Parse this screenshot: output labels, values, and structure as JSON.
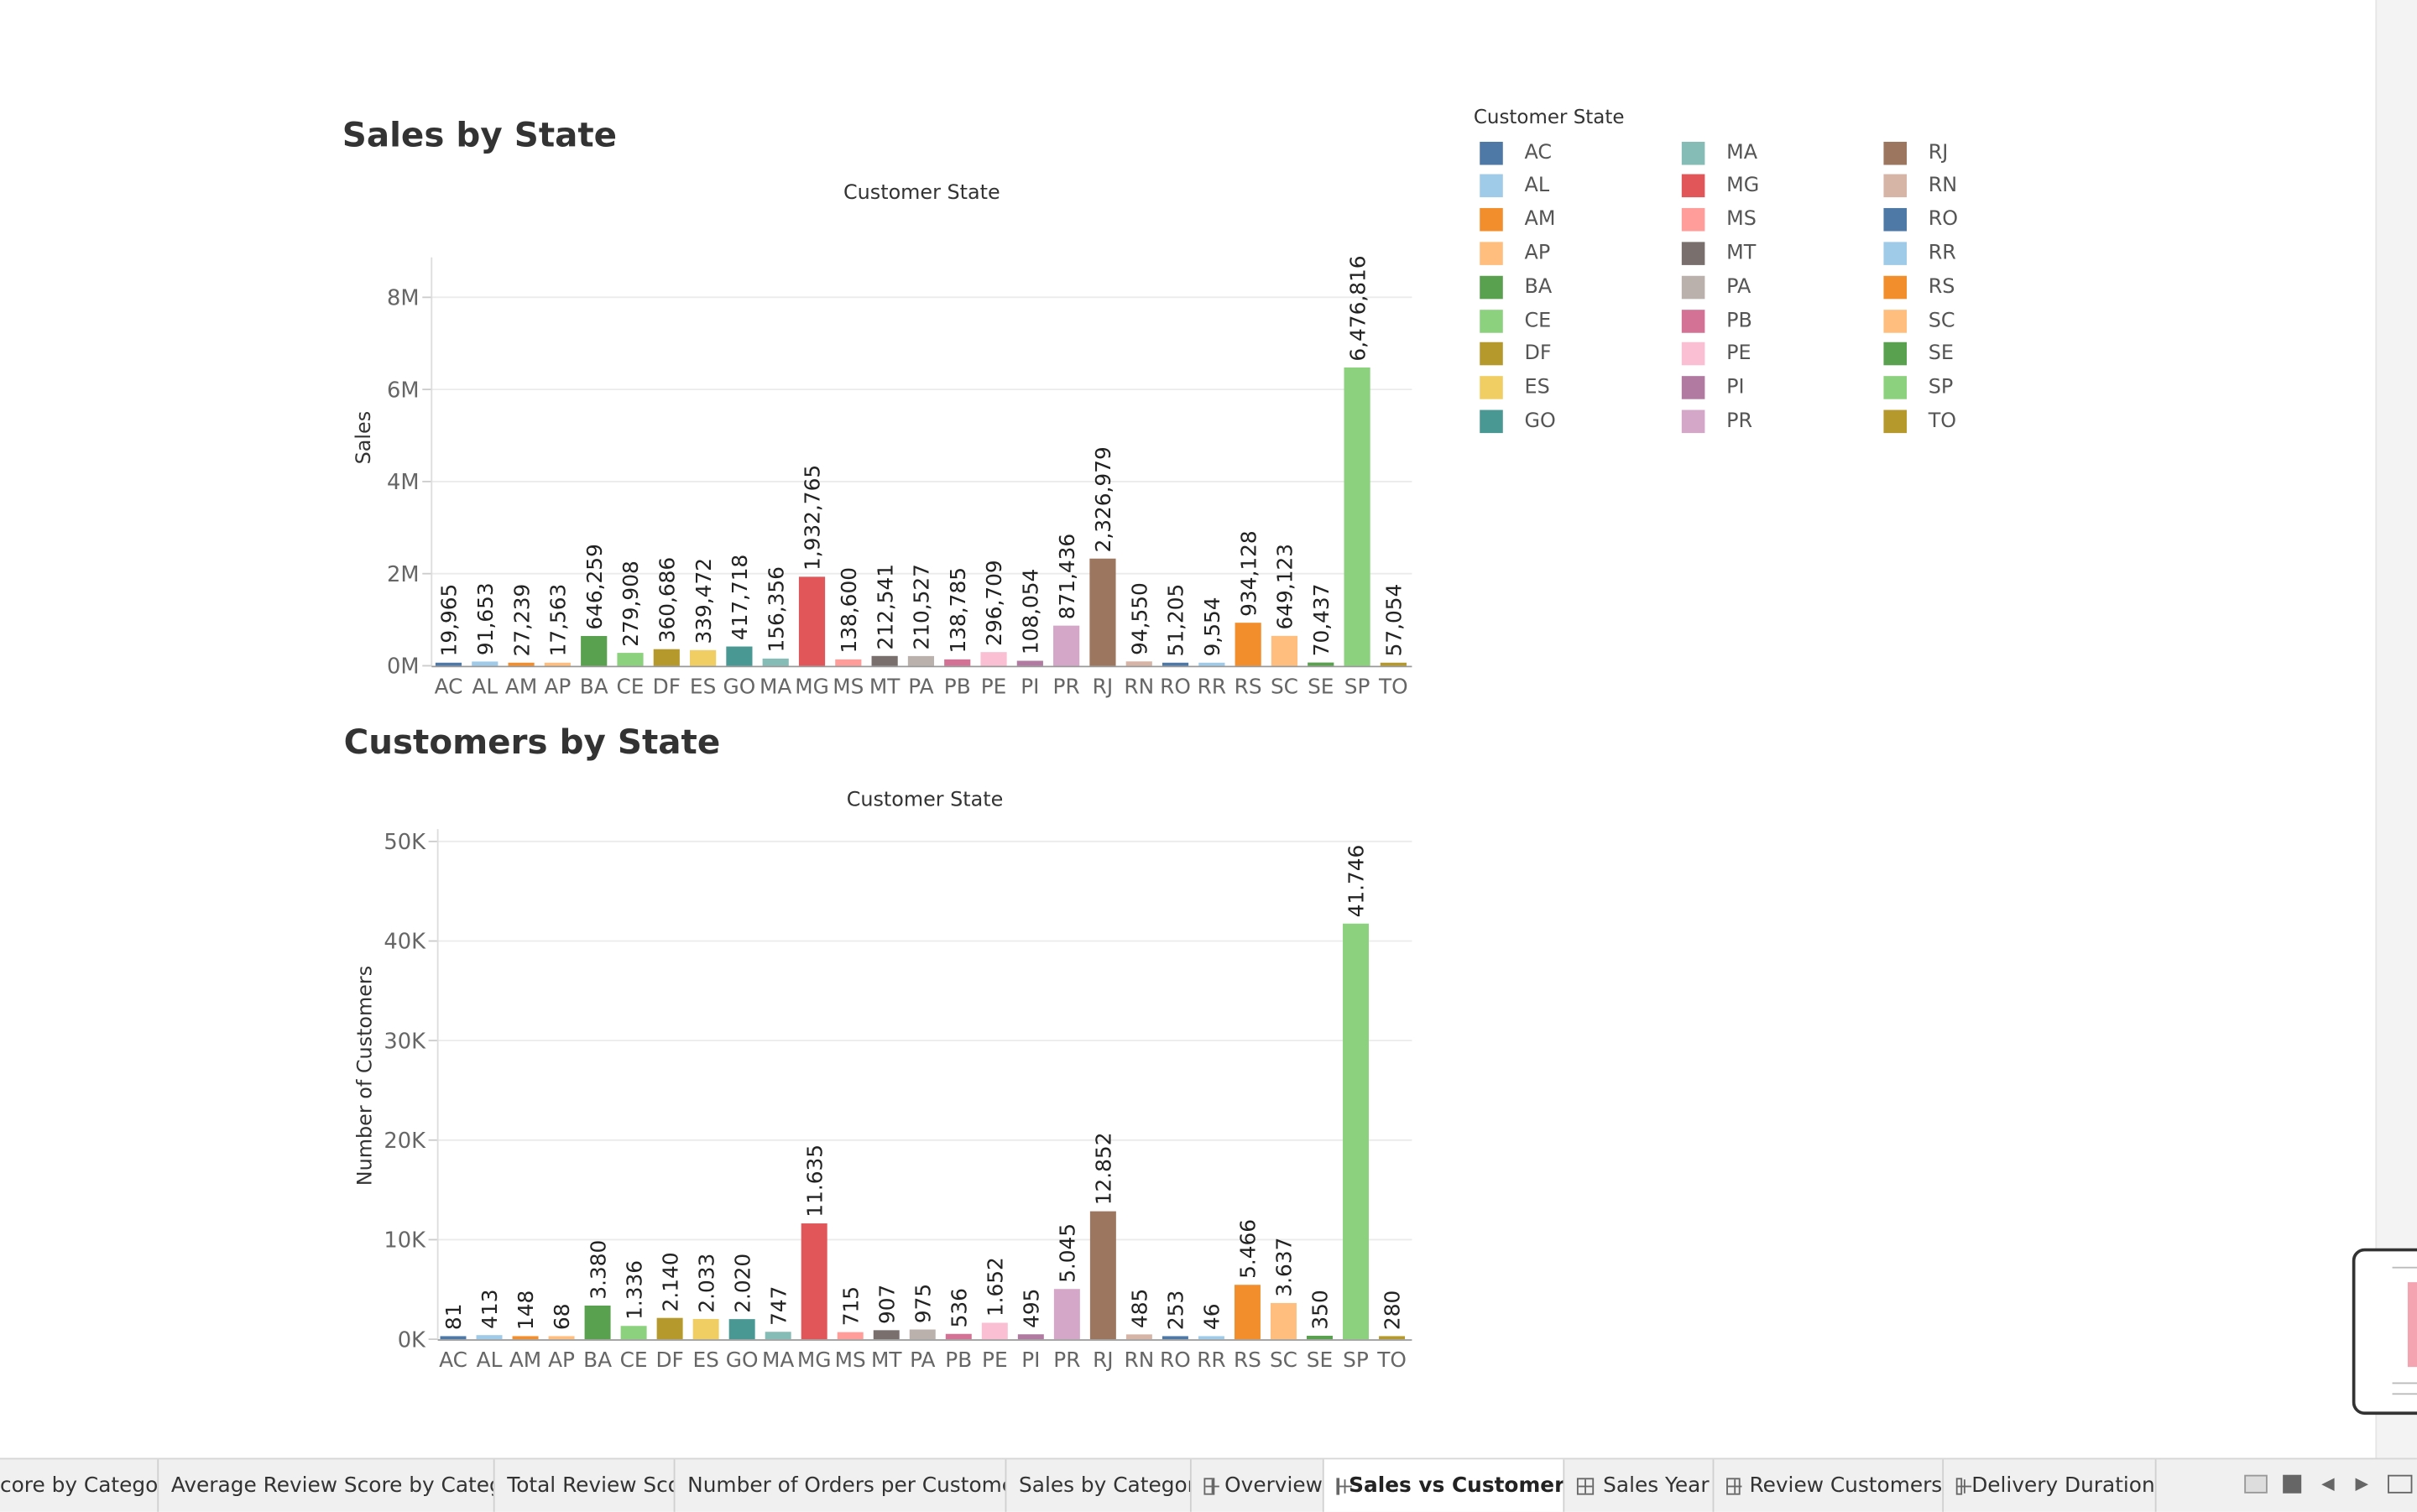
{
  "chart_data": [
    {
      "type": "bar",
      "title": "Sales by State",
      "subtitle": "Customer State",
      "ylabel": "Sales",
      "ylim": [
        0,
        8600000
      ],
      "yticks": [
        0,
        2000000,
        4000000,
        6000000,
        8000000
      ],
      "ytick_labels": [
        "0M",
        "2M",
        "4M",
        "6M",
        "8M"
      ],
      "grid": true,
      "categories": [
        "AC",
        "AL",
        "AM",
        "AP",
        "BA",
        "CE",
        "DF",
        "ES",
        "GO",
        "MA",
        "MG",
        "MS",
        "MT",
        "PA",
        "PB",
        "PE",
        "PI",
        "PR",
        "RJ",
        "RN",
        "RO",
        "RR",
        "RS",
        "SC",
        "SE",
        "SP",
        "TO"
      ],
      "values": [
        19965,
        91653,
        27239,
        17563,
        646259,
        279908,
        360686,
        339472,
        417718,
        156356,
        1932765,
        138600,
        212541,
        210527,
        138785,
        296709,
        108054,
        871436,
        2326979,
        94550,
        51205,
        9554,
        934128,
        649123,
        70437,
        6476816,
        57054
      ],
      "labels": [
        "19,965",
        "91,653",
        "27,239",
        "17,563",
        "646,259",
        "279,908",
        "360,686",
        "339,472",
        "417,718",
        "156,356",
        "1,932,765",
        "138,600",
        "212,541",
        "210,527",
        "138,785",
        "296,709",
        "108,054",
        "871,436",
        "2,326,979",
        "94,550",
        "51,205",
        "9,554",
        "934,128",
        "649,123",
        "70,437",
        "6,476,816",
        "57,054"
      ]
    },
    {
      "type": "bar",
      "title": "Customers by State",
      "subtitle": "Customer State",
      "ylabel": "Number of Customers",
      "ylim": [
        0,
        50000
      ],
      "yticks": [
        0,
        10000,
        20000,
        30000,
        40000,
        50000
      ],
      "ytick_labels": [
        "0K",
        "10K",
        "20K",
        "30K",
        "40K",
        "50K"
      ],
      "grid": true,
      "categories": [
        "AC",
        "AL",
        "AM",
        "AP",
        "BA",
        "CE",
        "DF",
        "ES",
        "GO",
        "MA",
        "MG",
        "MS",
        "MT",
        "PA",
        "PB",
        "PE",
        "PI",
        "PR",
        "RJ",
        "RN",
        "RO",
        "RR",
        "RS",
        "SC",
        "SE",
        "SP",
        "TO"
      ],
      "values": [
        81,
        413,
        148,
        68,
        3380,
        1336,
        2140,
        2033,
        2020,
        747,
        11635,
        715,
        907,
        975,
        536,
        1652,
        495,
        5045,
        12852,
        485,
        253,
        46,
        5466,
        3637,
        350,
        41746,
        280
      ],
      "labels": [
        "81",
        "413",
        "148",
        "68",
        "3.380",
        "1.336",
        "2.140",
        "2.033",
        "2.020",
        "747",
        "11.635",
        "715",
        "907",
        "975",
        "536",
        "1.652",
        "495",
        "5.045",
        "12.852",
        "485",
        "253",
        "46",
        "5.466",
        "3.637",
        "350",
        "41.746",
        "280"
      ]
    }
  ],
  "colors": {
    "AC": "#4e79a7",
    "AL": "#a0cbe8",
    "AM": "#f28e2b",
    "AP": "#ffbe7d",
    "BA": "#59a14f",
    "CE": "#8cd17d",
    "DF": "#b6992d",
    "ES": "#f1ce63",
    "GO": "#499894",
    "MA": "#86bcb6",
    "MG": "#e15759",
    "MS": "#ff9d9a",
    "MT": "#79706e",
    "PA": "#bab0ac",
    "PB": "#d37295",
    "PE": "#fabfd2",
    "PI": "#b07aa1",
    "PR": "#d4a6c8",
    "RJ": "#9d7660",
    "RN": "#d7b5a6",
    "RO": "#4e79a7",
    "RR": "#a0cbe8",
    "RS": "#f28e2b",
    "SC": "#ffbe7d",
    "SE": "#59a14f",
    "SP": "#8cd17d",
    "TO": "#b6992d"
  },
  "legend": {
    "title": "Customer State",
    "items": [
      "AC",
      "AL",
      "AM",
      "AP",
      "BA",
      "CE",
      "DF",
      "ES",
      "GO",
      "MA",
      "MG",
      "MS",
      "MT",
      "PA",
      "PB",
      "PE",
      "PI",
      "PR",
      "RJ",
      "RN",
      "RO",
      "RR",
      "RS",
      "SC",
      "SE",
      "SP",
      "TO"
    ],
    "placement": "right"
  },
  "tabs": [
    {
      "label": "core by Category",
      "icon": "none",
      "active": false
    },
    {
      "label": "Average Review Score by Catego...",
      "icon": "none",
      "active": false
    },
    {
      "label": "Total Review Score",
      "icon": "none",
      "active": false
    },
    {
      "label": "Number of Orders per Customer",
      "icon": "none",
      "active": false
    },
    {
      "label": "Sales by Category",
      "icon": "none",
      "active": false
    },
    {
      "label": "Overview",
      "icon": "dashboard-grid-icon",
      "active": false
    },
    {
      "label": "Sales vs Customers",
      "icon": "dashboard-grid-icon",
      "active": true
    },
    {
      "label": "Sales Year",
      "icon": "dashboard-grid-icon",
      "active": false
    },
    {
      "label": "Review Customers",
      "icon": "dashboard-grid-icon",
      "active": false
    },
    {
      "label": "Delivery Duration",
      "icon": "dashboard-grid-icon",
      "active": false
    }
  ],
  "tab_controls": [
    "filmstrip-view-icon",
    "tab-view-icon",
    "scroll-left-icon",
    "scroll-right-icon",
    "presentation-mode-icon"
  ]
}
